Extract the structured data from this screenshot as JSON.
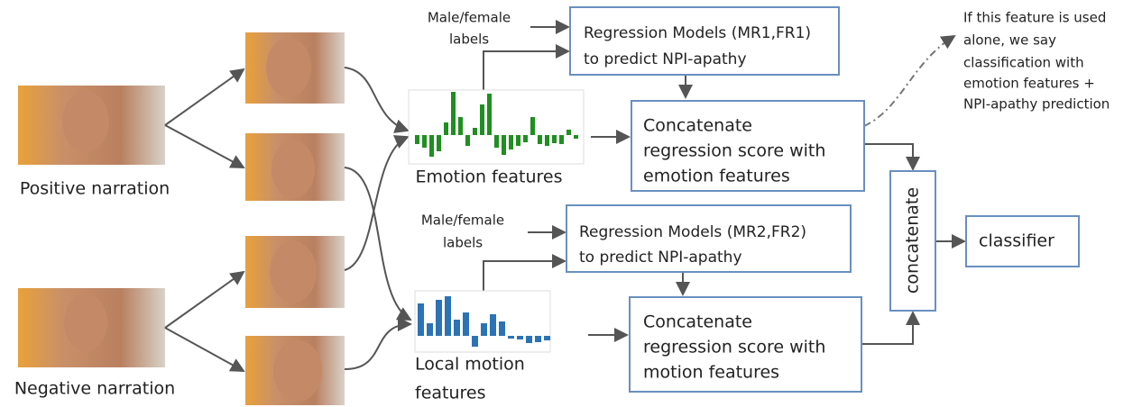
{
  "inputs": [
    "Positive narration",
    "Negative narration"
  ],
  "gender_labels": [
    [
      "Male/female",
      "labels"
    ],
    [
      "Male/female",
      "labels"
    ]
  ],
  "regression": [
    [
      "Regression Models (MR1,FR1)",
      "to predict NPI-apathy"
    ],
    [
      "Regression Models (MR2,FR2)",
      "to predict NPI-apathy"
    ]
  ],
  "features": [
    [
      "Emotion features"
    ],
    [
      "Local motion",
      "features"
    ]
  ],
  "concat": [
    [
      "Concatenate",
      "regression score with",
      "emotion  features"
    ],
    [
      "Concatenate",
      "regression score with",
      "motion  features"
    ]
  ],
  "note": [
    "If this feature is used",
    "alone, we say",
    "classification with",
    "emotion features +",
    "NPI-apathy prediction"
  ],
  "final_concat": "concatenate",
  "classifier": "classifier"
}
